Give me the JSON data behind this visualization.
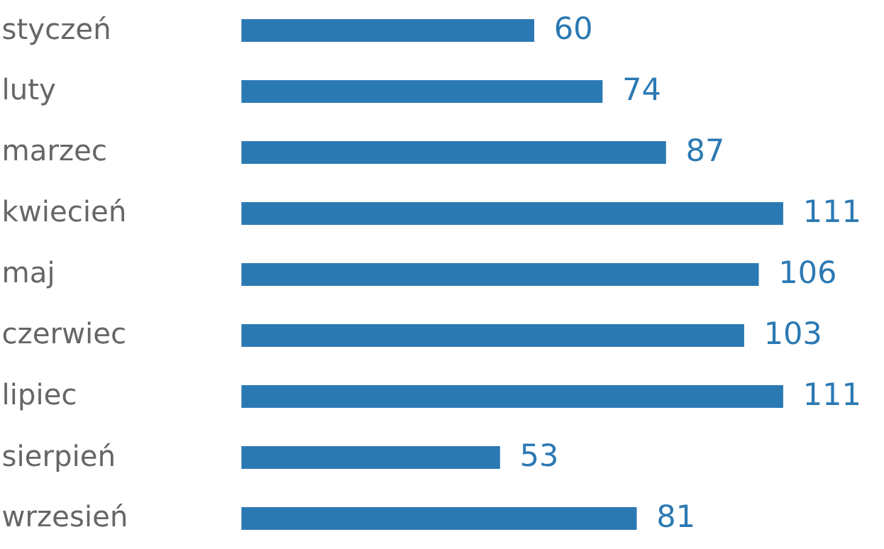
{
  "chart_data": {
    "type": "bar",
    "orientation": "horizontal",
    "data_labels": true,
    "categories": [
      "styczeń",
      "luty",
      "marzec",
      "kwiecień",
      "maj",
      "czerwiec",
      "lipiec",
      "sierpień",
      "wrzesień"
    ],
    "values": [
      60,
      74,
      87,
      111,
      106,
      103,
      111,
      53,
      81
    ],
    "color": "#2b79b3"
  }
}
